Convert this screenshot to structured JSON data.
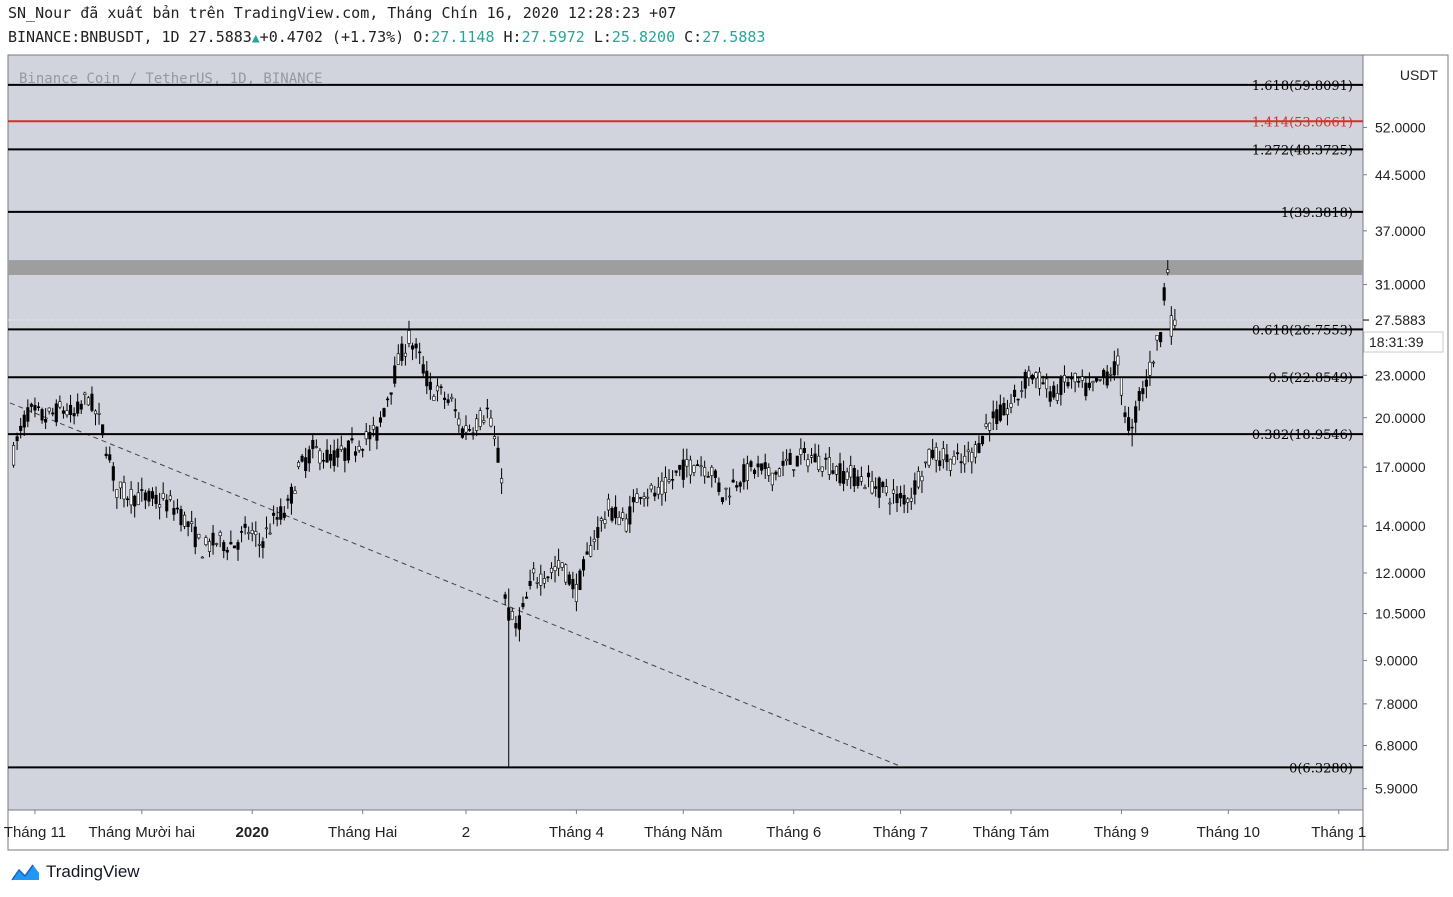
{
  "header": {
    "line1": "SN_Nour đã xuất bản trên TradingView.com, Tháng Chín 16, 2020 12:28:23 +07",
    "symbol": "BINANCE:BNBUSDT, 1D",
    "last": "27.5883",
    "change": "+0.4702 (+1.73%)",
    "o_label": "O:",
    "o_val": "27.1148",
    "h_label": "H:",
    "h_val": "27.5972",
    "l_label": "L:",
    "l_val": "25.8200",
    "c_label": "C:",
    "c_val": "27.5883"
  },
  "footer": {
    "brand": "TradingView"
  },
  "colors": {
    "background": "#d1d4dc",
    "up": "#26a69a",
    "fib_red": "#d32f2f",
    "line": "#000000"
  },
  "chart_data": {
    "type": "candlestick",
    "title": "Binance Coin / TetherUS, 1D, BINANCE",
    "currency": "USDT",
    "y_scale": "log",
    "ylim": [
      5.5,
      66
    ],
    "y_ticks": [
      "52.0000",
      "44.5000",
      "37.0000",
      "31.0000",
      "23.0000",
      "20.0000",
      "17.0000",
      "14.0000",
      "12.0000",
      "10.5000",
      "9.0000",
      "7.8000",
      "6.8000",
      "5.9000"
    ],
    "x_ticks": [
      "Tháng 11",
      "Tháng Mười hai",
      "2020",
      "Tháng Hai",
      "2",
      "Tháng 4",
      "Tháng Năm",
      "Tháng 6",
      "Tháng 7",
      "Tháng Tám",
      "Tháng 9",
      "Tháng 10",
      "Tháng 1"
    ],
    "x_tick_dates": [
      "2019-11-01",
      "2019-12-01",
      "2020-01-01",
      "2020-02-01",
      "2020-03-01",
      "2020-04-01",
      "2020-05-01",
      "2020-06-01",
      "2020-07-01",
      "2020-08-01",
      "2020-09-01",
      "2020-10-01",
      "2020-11-01"
    ],
    "fib_levels": [
      {
        "label": "1.618(59.8091)",
        "value": 59.8091,
        "color": "#000000"
      },
      {
        "label": "1.414(53.0661)",
        "value": 53.0661,
        "color": "#d32f2f"
      },
      {
        "label": "1.272(48.3725)",
        "value": 48.3725,
        "color": "#000000"
      },
      {
        "label": "1(39.3818)",
        "value": 39.3818,
        "color": "#000000"
      },
      {
        "label": "0.618(26.7553)",
        "value": 26.7553,
        "color": "#000000"
      },
      {
        "label": "0.5(22.8549)",
        "value": 22.8549,
        "color": "#000000"
      },
      {
        "label": "0.382(18.9546)",
        "value": 18.9546,
        "color": "#000000"
      },
      {
        "label": "0(6.3280)",
        "value": 6.328,
        "color": "#000000"
      }
    ],
    "resistance_band": [
      32.0,
      33.6
    ],
    "trendline": [
      {
        "date": "2019-10-25",
        "value": 21.0
      },
      {
        "date": "2020-07-01",
        "value": 6.35
      }
    ],
    "last_price": "27.5883",
    "countdown": "18:31:39",
    "price_path": [
      [
        "2019-10-25",
        17.0
      ],
      [
        "2019-10-27",
        18.5
      ],
      [
        "2019-10-30",
        20.4
      ],
      [
        "2019-11-04",
        20.0
      ],
      [
        "2019-11-09",
        20.6
      ],
      [
        "2019-11-12",
        20.1
      ],
      [
        "2019-11-16",
        21.5
      ],
      [
        "2019-11-20",
        19.2
      ],
      [
        "2019-11-24",
        15.8
      ],
      [
        "2019-11-28",
        15.5
      ],
      [
        "2019-12-03",
        15.3
      ],
      [
        "2019-12-07",
        15.2
      ],
      [
        "2019-12-11",
        14.8
      ],
      [
        "2019-12-15",
        13.8
      ],
      [
        "2019-12-18",
        13.0
      ],
      [
        "2019-12-22",
        13.3
      ],
      [
        "2019-12-27",
        13.2
      ],
      [
        "2019-12-31",
        13.8
      ],
      [
        "2020-01-03",
        13.2
      ],
      [
        "2020-01-07",
        14.2
      ],
      [
        "2020-01-11",
        14.9
      ],
      [
        "2020-01-14",
        16.8
      ],
      [
        "2020-01-18",
        18.0
      ],
      [
        "2020-01-23",
        17.5
      ],
      [
        "2020-01-27",
        17.8
      ],
      [
        "2020-02-01",
        18.6
      ],
      [
        "2020-02-05",
        19.0
      ],
      [
        "2020-02-08",
        21.5
      ],
      [
        "2020-02-11",
        24.0
      ],
      [
        "2020-02-14",
        26.0
      ],
      [
        "2020-02-17",
        24.3
      ],
      [
        "2020-02-20",
        22.0
      ],
      [
        "2020-02-23",
        21.6
      ],
      [
        "2020-02-26",
        21.0
      ],
      [
        "2020-02-29",
        19.2
      ],
      [
        "2020-03-03",
        19.5
      ],
      [
        "2020-03-07",
        20.5
      ],
      [
        "2020-03-09",
        18.5
      ],
      [
        "2020-03-11",
        16.6
      ],
      [
        "2020-03-12",
        11.0
      ],
      [
        "2020-03-13",
        10.5
      ],
      [
        "2020-03-15",
        10.0
      ],
      [
        "2020-03-17",
        10.6
      ],
      [
        "2020-03-20",
        11.8
      ],
      [
        "2020-03-24",
        12.0
      ],
      [
        "2020-03-28",
        12.3
      ],
      [
        "2020-04-01",
        11.3
      ],
      [
        "2020-04-06",
        13.5
      ],
      [
        "2020-04-10",
        14.8
      ],
      [
        "2020-04-15",
        14.2
      ],
      [
        "2020-04-19",
        15.8
      ],
      [
        "2020-04-24",
        15.5
      ],
      [
        "2020-04-30",
        16.8
      ],
      [
        "2020-05-05",
        17.3
      ],
      [
        "2020-05-09",
        16.8
      ],
      [
        "2020-05-12",
        15.5
      ],
      [
        "2020-05-17",
        16.5
      ],
      [
        "2020-05-21",
        16.9
      ],
      [
        "2020-05-26",
        16.6
      ],
      [
        "2020-05-31",
        17.3
      ],
      [
        "2020-06-05",
        17.6
      ],
      [
        "2020-06-10",
        17.3
      ],
      [
        "2020-06-14",
        16.7
      ],
      [
        "2020-06-18",
        16.5
      ],
      [
        "2020-06-22",
        16.2
      ],
      [
        "2020-06-26",
        15.8
      ],
      [
        "2020-06-30",
        15.3
      ],
      [
        "2020-07-04",
        15.5
      ],
      [
        "2020-07-06",
        16.5
      ],
      [
        "2020-07-10",
        17.8
      ],
      [
        "2020-07-14",
        17.5
      ],
      [
        "2020-07-18",
        17.2
      ],
      [
        "2020-07-22",
        18.0
      ],
      [
        "2020-07-26",
        19.8
      ],
      [
        "2020-07-30",
        20.3
      ],
      [
        "2020-08-03",
        21.5
      ],
      [
        "2020-08-06",
        23.2
      ],
      [
        "2020-08-10",
        22.4
      ],
      [
        "2020-08-13",
        21.5
      ],
      [
        "2020-08-17",
        22.6
      ],
      [
        "2020-08-20",
        22.3
      ],
      [
        "2020-08-23",
        21.8
      ],
      [
        "2020-08-27",
        22.8
      ],
      [
        "2020-08-31",
        23.8
      ],
      [
        "2020-09-02",
        20.5
      ],
      [
        "2020-09-04",
        19.0
      ],
      [
        "2020-09-06",
        21.5
      ],
      [
        "2020-09-08",
        22.5
      ],
      [
        "2020-09-10",
        24.5
      ],
      [
        "2020-09-12",
        26.5
      ],
      [
        "2020-09-13",
        30.5
      ],
      [
        "2020-09-14",
        32.7
      ],
      [
        "2020-09-15",
        27.1
      ],
      [
        "2020-09-16",
        27.5883
      ]
    ]
  }
}
